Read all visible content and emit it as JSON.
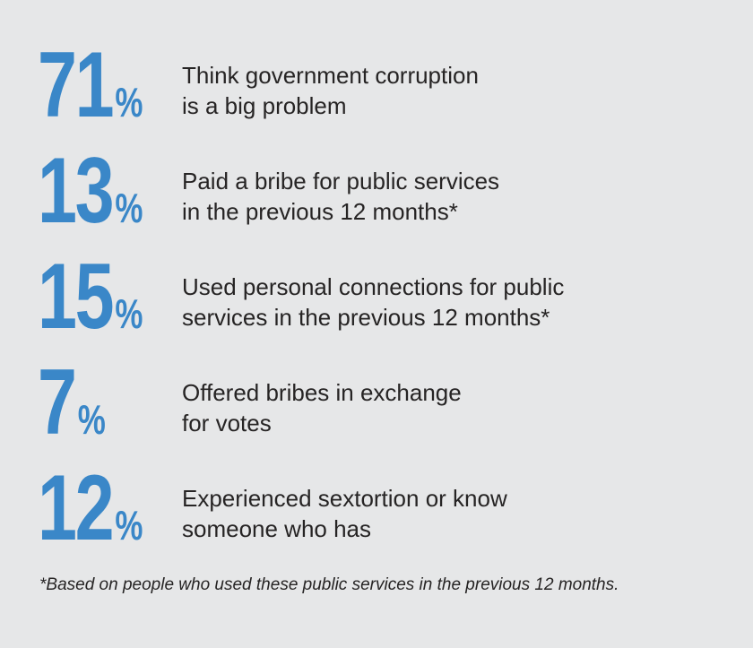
{
  "colors": {
    "background": "#e6e7e8",
    "accent_blue": "#3a87c8",
    "text_dark": "#262424"
  },
  "chart_data": {
    "type": "table",
    "title": "",
    "unit": "%",
    "categories": [
      "Think government corruption is a big problem",
      "Paid a bribe for public services in the previous 12 months*",
      "Used personal connections for public services in the previous 12 months*",
      "Offered bribes in exchange for votes",
      "Experienced sextortion or know someone who has"
    ],
    "values": [
      71,
      13,
      15,
      7,
      12
    ],
    "footnote": "*Based on people who used these public services in the previous 12 months.",
    "legend_position": "none",
    "grid": false
  },
  "stats": [
    {
      "value": "71",
      "unit": "%",
      "line1": "Think government corruption",
      "line2": "is a big problem"
    },
    {
      "value": "13",
      "unit": "%",
      "line1": "Paid a bribe for public services",
      "line2": "in the previous 12 months*"
    },
    {
      "value": "15",
      "unit": "%",
      "line1": "Used personal connections for public",
      "line2": "services in the previous 12 months*"
    },
    {
      "value": "7",
      "unit": "%",
      "line1": "Offered bribes in exchange",
      "line2": "for votes"
    },
    {
      "value": "12",
      "unit": "%",
      "line1": "Experienced sextortion or know",
      "line2": "someone who has"
    }
  ],
  "footnote": "*Based on people who used these public services in the previous 12 months."
}
